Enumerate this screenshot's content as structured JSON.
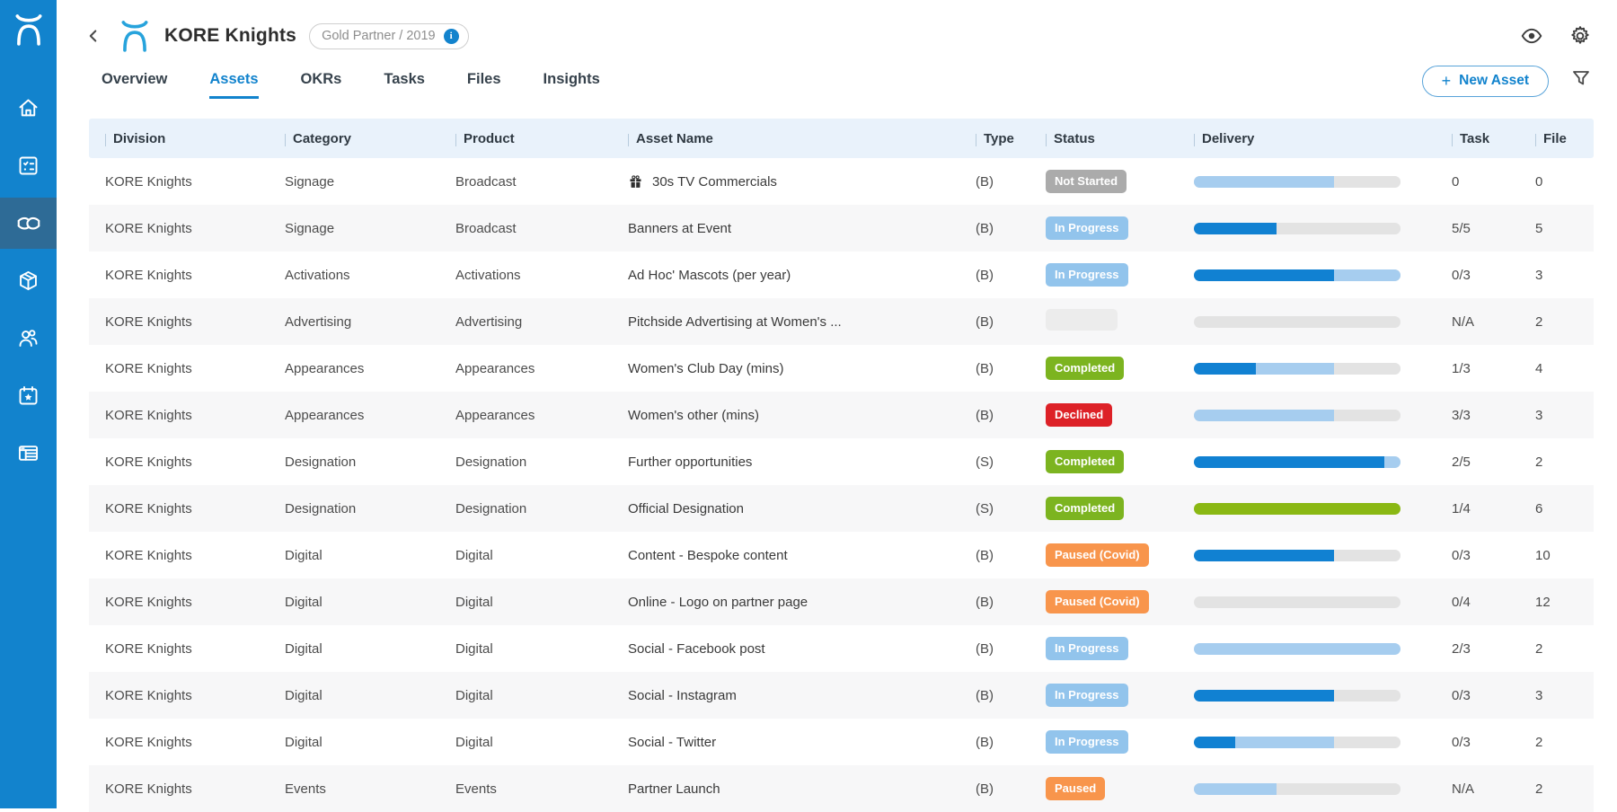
{
  "sidebar": {
    "icons": [
      "kore-logo",
      "home-icon",
      "checklist-icon",
      "handshake-icon",
      "package-icon",
      "people-icon",
      "calendar-star-icon",
      "report-icon"
    ],
    "active_item": "handshake"
  },
  "header": {
    "title": "KORE Knights",
    "partner_badge": "Gold Partner / 2019",
    "info_label": "i"
  },
  "tabs": [
    {
      "label": "Overview",
      "active": false
    },
    {
      "label": "Assets",
      "active": true
    },
    {
      "label": "OKRs",
      "active": false
    },
    {
      "label": "Tasks",
      "active": false
    },
    {
      "label": "Files",
      "active": false
    },
    {
      "label": "Insights",
      "active": false
    }
  ],
  "toolbar": {
    "new_asset_plus": "+",
    "new_asset_label": "New Asset"
  },
  "colors": {
    "accent": "#1283cd",
    "sidebar": "#1283cd",
    "sidebar_active": "#2e6b96",
    "table_header_bg": "#e9f2fb",
    "row_alt_bg": "#f7f7f8",
    "bar": {
      "dark": "#1181d2",
      "light": "#a6cdef",
      "gray": "#e3e3e3",
      "green": "#8ab814"
    },
    "status": {
      "Not Started": "#ababab",
      "In Progress": "#92c4ec",
      "Completed": "#7cb420",
      "Declined": "#dd2127",
      "Paused (Covid)": "#f8954c",
      "Paused": "#f8954c",
      "blank": "#ececec"
    }
  },
  "table": {
    "columns": [
      "Division",
      "Category",
      "Product",
      "Asset Name",
      "Type",
      "Status",
      "Delivery",
      "Task",
      "File"
    ],
    "rows": [
      {
        "division": "KORE Knights",
        "category": "Signage",
        "product": "Broadcast",
        "asset": "30s TV Commercials",
        "gift": true,
        "type": "(B)",
        "status": "Not Started",
        "delivery": [
          [
            "light",
            68
          ],
          [
            "gray",
            32
          ]
        ],
        "task": "0",
        "file": "0"
      },
      {
        "division": "KORE Knights",
        "category": "Signage",
        "product": "Broadcast",
        "asset": "Banners at Event",
        "gift": false,
        "type": "(B)",
        "status": "In Progress",
        "delivery": [
          [
            "dark",
            40
          ],
          [
            "gray",
            60
          ]
        ],
        "task": "5/5",
        "file": "5"
      },
      {
        "division": "KORE Knights",
        "category": "Activations",
        "product": "Activations",
        "asset": "Ad Hoc' Mascots (per year)",
        "gift": false,
        "type": "(B)",
        "status": "In Progress",
        "delivery": [
          [
            "dark",
            68
          ],
          [
            "light",
            32
          ]
        ],
        "task": "0/3",
        "file": "3"
      },
      {
        "division": "KORE Knights",
        "category": "Advertising",
        "product": "Advertising",
        "asset": "Pitchside Advertising at Women's ...",
        "gift": false,
        "type": "(B)",
        "status": "blank",
        "delivery": [
          [
            "gray",
            100
          ]
        ],
        "task": "N/A",
        "file": "2"
      },
      {
        "division": "KORE Knights",
        "category": "Appearances",
        "product": "Appearances",
        "asset": "Women's Club Day (mins)",
        "gift": false,
        "type": "(B)",
        "status": "Completed",
        "delivery": [
          [
            "dark",
            30
          ],
          [
            "light",
            38
          ],
          [
            "gray",
            32
          ]
        ],
        "task": "1/3",
        "file": "4"
      },
      {
        "division": "KORE Knights",
        "category": "Appearances",
        "product": "Appearances",
        "asset": "Women's other (mins)",
        "gift": false,
        "type": "(B)",
        "status": "Declined",
        "delivery": [
          [
            "light",
            68
          ],
          [
            "gray",
            32
          ]
        ],
        "task": "3/3",
        "file": "3"
      },
      {
        "division": "KORE Knights",
        "category": "Designation",
        "product": "Designation",
        "asset": "Further opportunities",
        "gift": false,
        "type": "(S)",
        "status": "Completed",
        "delivery": [
          [
            "dark",
            92
          ],
          [
            "light",
            8
          ]
        ],
        "task": "2/5",
        "file": "2"
      },
      {
        "division": "KORE Knights",
        "category": "Designation",
        "product": "Designation",
        "asset": "Official Designation",
        "gift": false,
        "type": "(S)",
        "status": "Completed",
        "delivery": [
          [
            "green",
            100
          ]
        ],
        "task": "1/4",
        "file": "6"
      },
      {
        "division": "KORE Knights",
        "category": "Digital",
        "product": "Digital",
        "asset": "Content - Bespoke content",
        "gift": false,
        "type": "(B)",
        "status": "Paused (Covid)",
        "delivery": [
          [
            "dark",
            68
          ],
          [
            "gray",
            32
          ]
        ],
        "task": "0/3",
        "file": "10"
      },
      {
        "division": "KORE Knights",
        "category": "Digital",
        "product": "Digital",
        "asset": "Online - Logo on partner page",
        "gift": false,
        "type": "(B)",
        "status": "Paused (Covid)",
        "delivery": [
          [
            "gray",
            100
          ]
        ],
        "task": "0/4",
        "file": "12"
      },
      {
        "division": "KORE Knights",
        "category": "Digital",
        "product": "Digital",
        "asset": "Social - Facebook post",
        "gift": false,
        "type": "(B)",
        "status": "In Progress",
        "delivery": [
          [
            "light",
            100
          ]
        ],
        "task": "2/3",
        "file": "2"
      },
      {
        "division": "KORE Knights",
        "category": "Digital",
        "product": "Digital",
        "asset": "Social - Instagram",
        "gift": false,
        "type": "(B)",
        "status": "In Progress",
        "delivery": [
          [
            "dark",
            68
          ],
          [
            "gray",
            32
          ]
        ],
        "task": "0/3",
        "file": "3"
      },
      {
        "division": "KORE Knights",
        "category": "Digital",
        "product": "Digital",
        "asset": "Social - Twitter",
        "gift": false,
        "type": "(B)",
        "status": "In Progress",
        "delivery": [
          [
            "dark",
            20
          ],
          [
            "light",
            48
          ],
          [
            "gray",
            32
          ]
        ],
        "task": "0/3",
        "file": "2"
      },
      {
        "division": "KORE Knights",
        "category": "Events",
        "product": "Events",
        "asset": "Partner Launch",
        "gift": false,
        "type": "(B)",
        "status": "Paused",
        "delivery": [
          [
            "light",
            40
          ],
          [
            "gray",
            60
          ]
        ],
        "task": "N/A",
        "file": "2"
      }
    ]
  }
}
